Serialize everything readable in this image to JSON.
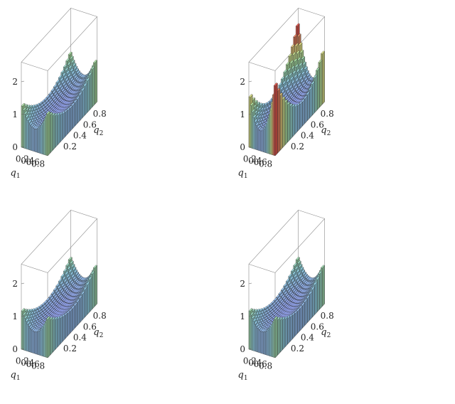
{
  "chart_data": [
    {
      "type": "3d-bar",
      "title": "",
      "xlabel": "q",
      "xlabel_sub": "1",
      "ylabel": "q",
      "ylabel_sub": "2",
      "zlabel": "",
      "xticks": [
        "0.2",
        "0.4",
        "0.6",
        "0.8"
      ],
      "yticks": [
        "0.2",
        "0.4",
        "0.6",
        "0.8"
      ],
      "zticks": [
        "0",
        "1",
        "2"
      ],
      "xlim": [
        0,
        1
      ],
      "ylim": [
        0,
        1
      ],
      "zlim": [
        0,
        2
      ],
      "grid_n": 20,
      "surface": {
        "form": "saddle",
        "center_z": 0.45,
        "edge_z": 0.9,
        "corner_z": 1.3,
        "tilt": 0.0
      },
      "colormap": "blue-green-yellow-red"
    },
    {
      "type": "3d-bar",
      "title": "",
      "xlabel": "q",
      "xlabel_sub": "1",
      "ylabel": "q",
      "ylabel_sub": "2",
      "zlabel": "",
      "xticks": [
        "0.2",
        "0.4",
        "0.6",
        "0.8"
      ],
      "yticks": [
        "0.2",
        "0.4",
        "0.6",
        "0.8"
      ],
      "zticks": [
        "0",
        "1",
        "2"
      ],
      "xlim": [
        0,
        1
      ],
      "ylim": [
        0,
        1
      ],
      "zlim": [
        0,
        2
      ],
      "grid_n": 20,
      "surface": {
        "form": "twisted-saddle",
        "center_z": 0.45,
        "edge_z": 0.8,
        "corner_z": 1.9,
        "tilt": 0.6
      },
      "colormap": "blue-green-yellow-red"
    },
    {
      "type": "3d-bar",
      "title": "",
      "xlabel": "q",
      "xlabel_sub": "1",
      "ylabel": "q",
      "ylabel_sub": "2",
      "zlabel": "",
      "xticks": [
        "0.2",
        "0.4",
        "0.6",
        "0.8"
      ],
      "yticks": [
        "0.2",
        "0.4",
        "0.6",
        "0.8"
      ],
      "zticks": [
        "0",
        "1",
        "2"
      ],
      "xlim": [
        0,
        1
      ],
      "ylim": [
        0,
        1
      ],
      "zlim": [
        0,
        2
      ],
      "grid_n": 20,
      "surface": {
        "form": "saddle",
        "center_z": 0.45,
        "edge_z": 0.85,
        "corner_z": 1.2,
        "tilt": 0.0
      },
      "colormap": "blue-green-yellow-red"
    },
    {
      "type": "3d-bar",
      "title": "",
      "xlabel": "q",
      "xlabel_sub": "1",
      "ylabel": "q",
      "ylabel_sub": "2",
      "zlabel": "",
      "xticks": [
        "0.2",
        "0.4",
        "0.6",
        "0.8"
      ],
      "yticks": [
        "0.2",
        "0.4",
        "0.6",
        "0.8"
      ],
      "zticks": [
        "0",
        "1",
        "2"
      ],
      "xlim": [
        0,
        1
      ],
      "ylim": [
        0,
        1
      ],
      "zlim": [
        0,
        2
      ],
      "grid_n": 20,
      "surface": {
        "form": "saddle",
        "center_z": 0.45,
        "edge_z": 0.85,
        "corner_z": 1.2,
        "tilt": 0.0
      },
      "colormap": "blue-green-yellow-red"
    }
  ]
}
